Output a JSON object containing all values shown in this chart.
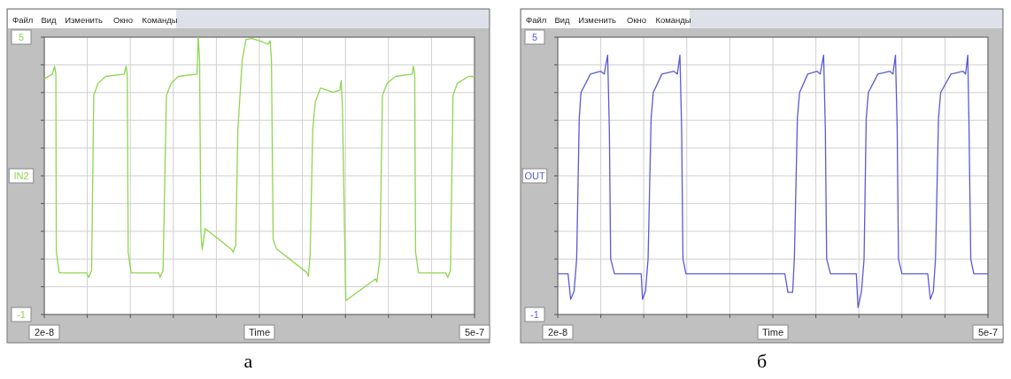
{
  "chart_data": [
    {
      "type": "line",
      "ylabel": "IN2",
      "xlabel": "Time",
      "annotations": [
        "Файл",
        "Вид",
        "Изменить",
        "Окно",
        "Команды",
        "а"
      ],
      "grid": true,
      "xlim": [
        2e-08,
        5e-07
      ],
      "ylim": [
        -1,
        5
      ],
      "xticks": [
        {
          "value": 2e-08,
          "label": "2e-8"
        },
        {
          "value": 6.8e-08,
          "label": null
        },
        {
          "value": 1.16e-07,
          "label": null
        },
        {
          "value": 1.64e-07,
          "label": null
        },
        {
          "value": 2.12e-07,
          "label": null
        },
        {
          "value": 2.6e-07,
          "label": null
        },
        {
          "value": 3.08e-07,
          "label": null
        },
        {
          "value": 3.56e-07,
          "label": null
        },
        {
          "value": 4.04e-07,
          "label": null
        },
        {
          "value": 4.52e-07,
          "label": null
        },
        {
          "value": 5e-07,
          "label": "5e-7"
        }
      ],
      "yticks": [
        {
          "value": -1,
          "label": "-1"
        },
        {
          "value": -0.4,
          "label": null
        },
        {
          "value": 0.2,
          "label": null
        },
        {
          "value": 0.8,
          "label": null
        },
        {
          "value": 1.4,
          "label": null
        },
        {
          "value": 2,
          "label": null
        },
        {
          "value": 2.6,
          "label": null
        },
        {
          "value": 3.2,
          "label": null
        },
        {
          "value": 3.8,
          "label": null
        },
        {
          "value": 4.4,
          "label": null
        },
        {
          "value": 5,
          "label": "5"
        }
      ],
      "series": [
        {
          "color": "#8fd650",
          "x": [
            2e-08,
            2.912e-08,
            3.152e-08,
            3.296e-08,
            3.344e-08,
            3.68e-08,
            6.752e-08,
            6.944e-08,
            7.28e-08,
            7.52e-08,
            8e-08,
            8.864e-08,
            1.0928e-07,
            1.112e-07,
            1.1264e-07,
            1.136e-07,
            1.1696e-07,
            1.4768e-07,
            1.4912e-07,
            1.5248e-07,
            1.5632e-07,
            1.616e-07,
            1.6976e-07,
            1.904e-07,
            1.9184e-07,
            1.9328e-07,
            1.9472e-07,
            1.9616e-07,
            1.976e-07,
            1.9952e-07,
            2.288e-07,
            2.3072e-07,
            2.336e-07,
            2.36e-07,
            2.408e-07,
            2.4512e-07,
            2.5184e-07,
            2.6e-07,
            2.696e-07,
            2.72e-07,
            2.7344e-07,
            2.7536e-07,
            2.792e-07,
            3.128e-07,
            3.1472e-07,
            3.1664e-07,
            3.1952e-07,
            3.224e-07,
            3.2816e-07,
            3.4208e-07,
            3.4976e-07,
            3.512e-07,
            3.5264e-07,
            3.56e-07,
            3.5648e-07,
            3.896e-07,
            3.9104e-07,
            3.944e-07,
            3.9728e-07,
            4.0256e-07,
            4.1168e-07,
            4.304e-07,
            4.3184e-07,
            4.3328e-07,
            4.3424e-07,
            4.376e-07,
            4.6784e-07,
            4.7024e-07,
            4.7312e-07,
            4.76e-07,
            4.808e-07,
            4.9328e-07,
            5e-07
          ],
          "values": [
            4.1,
            4.2,
            4.37,
            4.2,
            0.35,
            -0.1,
            -0.1,
            -0.2,
            -0.05,
            3.74,
            4.0,
            4.15,
            4.2,
            4.37,
            4.2,
            0.35,
            -0.1,
            -0.1,
            -0.2,
            -0.05,
            3.74,
            4.0,
            4.15,
            4.2,
            5.0,
            4.5,
            0.8,
            0.4,
            0.59,
            0.86,
            0.41,
            0.35,
            0.5,
            3.0,
            4.5,
            4.95,
            4.97,
            4.92,
            4.85,
            4.92,
            4.5,
            0.62,
            0.42,
            -0.09,
            -0.17,
            0.3,
            3.0,
            3.6,
            3.9,
            3.81,
            3.85,
            4.06,
            3.5,
            -0.3,
            -0.7,
            -0.23,
            -0.3,
            0.2,
            3.74,
            4.0,
            4.15,
            4.2,
            4.37,
            4.2,
            0.35,
            -0.1,
            -0.1,
            -0.2,
            -0.05,
            3.74,
            4.0,
            4.15,
            4.15
          ]
        }
      ]
    },
    {
      "type": "line",
      "ylabel": "OUT",
      "xlabel": "Time",
      "annotations": [
        "Файл",
        "Вид",
        "Изменить",
        "Окно",
        "Команды",
        "б"
      ],
      "grid": true,
      "xlim": [
        2e-08,
        5e-07
      ],
      "ylim": [
        -1,
        5
      ],
      "xticks": [
        {
          "value": 2e-08,
          "label": "2e-8"
        },
        {
          "value": 6.8e-08,
          "label": null
        },
        {
          "value": 1.16e-07,
          "label": null
        },
        {
          "value": 1.64e-07,
          "label": null
        },
        {
          "value": 2.12e-07,
          "label": null
        },
        {
          "value": 2.6e-07,
          "label": null
        },
        {
          "value": 3.08e-07,
          "label": null
        },
        {
          "value": 3.56e-07,
          "label": null
        },
        {
          "value": 4.04e-07,
          "label": null
        },
        {
          "value": 4.52e-07,
          "label": null
        },
        {
          "value": 5e-07,
          "label": "5e-7"
        }
      ],
      "yticks": [
        -1,
        {
          "value": -0.4,
          "label": null
        },
        {
          "value": 0.2,
          "label": null
        },
        {
          "value": 0.8,
          "label": null
        },
        {
          "value": 1.4,
          "label": null
        },
        {
          "value": 2,
          "label": null
        },
        {
          "value": 2.6,
          "label": null
        },
        {
          "value": 3.2,
          "label": null
        },
        {
          "value": 3.8,
          "label": null
        },
        {
          "value": 4.4,
          "label": null
        },
        5
      ],
      "series": [
        {
          "color": "#5a5ad8",
          "x": [
            2e-08,
            3.152e-08,
            3.44e-08,
            3.824e-08,
            4.112e-08,
            4.4e-08,
            4.592e-08,
            5.648e-08,
            6.8e-08,
            7.184e-08,
            7.568e-08,
            7.76e-08,
            7.904e-08,
            8.336e-08,
            1.1312e-07,
            1.1456e-07,
            1.1792e-07,
            1.208e-07,
            1.2416e-07,
            1.2656e-07,
            1.3616e-07,
            1.496e-07,
            1.5344e-07,
            1.5632e-07,
            1.5824e-07,
            1.5968e-07,
            1.6304e-07,
            2.7344e-07,
            2.768e-07,
            2.8208e-07,
            2.84e-07,
            2.8736e-07,
            2.8976e-07,
            2.9888e-07,
            3.0944e-07,
            3.128e-07,
            3.1664e-07,
            3.1856e-07,
            3.2e-07,
            3.2432e-07,
            3.5312e-07,
            3.5504e-07,
            3.5888e-07,
            3.6176e-07,
            3.6416e-07,
            3.6656e-07,
            3.7712e-07,
            3.9056e-07,
            3.9392e-07,
            3.968e-07,
            3.9872e-07,
            4.0016e-07,
            4.04e-07,
            4.328e-07,
            4.3568e-07,
            4.3904e-07,
            4.4144e-07,
            4.448e-07,
            4.472e-07,
            4.5872e-07,
            4.7216e-07,
            4.7504e-07,
            4.7744e-07,
            4.7888e-07,
            4.808e-07,
            4.8416e-07,
            5e-07
          ],
          "values": [
            -0.12,
            -0.12,
            -0.67,
            -0.5,
            0.2,
            3.24,
            3.8,
            4.2,
            4.26,
            4.2,
            4.61,
            3.0,
            0.2,
            -0.12,
            -0.12,
            -0.67,
            -0.5,
            0.2,
            3.24,
            3.8,
            4.2,
            4.26,
            4.2,
            4.61,
            3.0,
            0.2,
            -0.12,
            -0.12,
            -0.52,
            -0.52,
            0.2,
            3.24,
            3.8,
            4.2,
            4.26,
            4.2,
            4.61,
            3.0,
            0.2,
            -0.12,
            -0.12,
            -0.85,
            -0.5,
            0.2,
            3.24,
            3.8,
            4.2,
            4.26,
            4.2,
            4.61,
            3.0,
            0.2,
            -0.12,
            -0.12,
            -0.67,
            -0.5,
            0.2,
            3.24,
            3.8,
            4.2,
            4.26,
            4.2,
            4.61,
            3.0,
            0.2,
            -0.12,
            -0.12
          ]
        }
      ]
    }
  ]
}
